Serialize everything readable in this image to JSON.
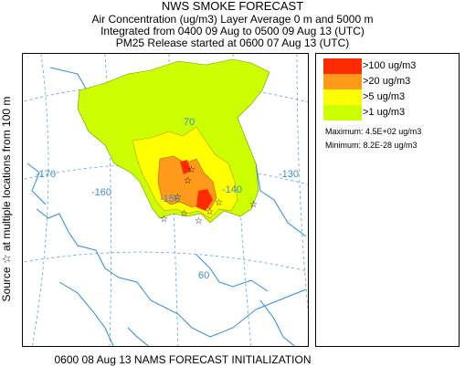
{
  "header": {
    "title": "NWS SMOKE FORECAST",
    "line2": "Air Concentration (ug/m3) Layer Average    0 m and  5000 m",
    "line3": "Integrated from 0400 09 Aug to 0500 09 Aug 13 (UTC)",
    "line4": "PM25 Release started at 0600 07 Aug 13 (UTC)"
  },
  "side_label": "Source ☆   at multiple locations    from   100 m",
  "legend": {
    "items": [
      {
        "label": ">100 ug/m3",
        "color": "#ff2a00"
      },
      {
        "label": ">20 ug/m3",
        "color": "#ff9a1a"
      },
      {
        "label": ">5 ug/m3",
        "color": "#ffff00"
      },
      {
        "label": ">1 ug/m3",
        "color": "#ccff00"
      }
    ],
    "maximum": "Maximum: 4.5E+02 ug/m3",
    "minimum": "Minimum: 8.2E-28 ug/m3"
  },
  "map": {
    "longitude_labels": [
      "-170",
      "-160",
      "-150",
      "-140",
      "-130"
    ],
    "latitude_labels": [
      "70",
      "60"
    ],
    "colors": {
      "coast": "#2a8ae0",
      "grid": "#5aa0d8",
      "label": "#3a8fd0"
    }
  },
  "footer": "0600 08 Aug 13 NAMS FORECAST INITIALIZATION"
}
